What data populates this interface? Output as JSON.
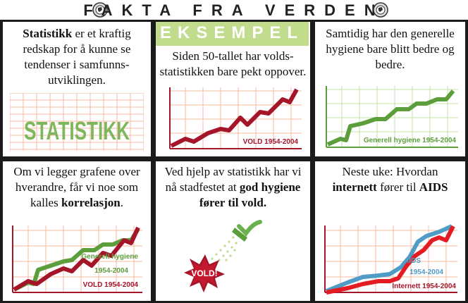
{
  "header": {
    "title": "FAKTA FRA VERDEN"
  },
  "panels": {
    "p1": {
      "bold": "Statistikk",
      "rest": " er et kraftig redskap for å kunne se tendenser i samfunns-utviklingen.",
      "graphic_word": "STATISTIKK"
    },
    "p2": {
      "tag": "EKSEMPEL",
      "text": "Siden 50-tallet har volds-statistikken bare pekt oppover.",
      "chart_label": "VOLD 1954-2004"
    },
    "p3": {
      "text": "Samtidig har den generelle hygiene bare blitt bedre og bedre.",
      "chart_label": "Generell hygiene 1954-2004"
    },
    "p4": {
      "text": "Om vi legger grafene over hverandre, får vi noe som kalles ",
      "bold": "korrelasjon",
      "end": ".",
      "label_green_1": "Generell hygiene",
      "label_green_2": "1954-2004",
      "label_red": "VOLD 1954-2004"
    },
    "p5": {
      "text": "Ved hjelp av statistikk har vi nå stadfestet at ",
      "bold": "god hygiene fører til vold.",
      "burst_label": "VOLD!"
    },
    "p6": {
      "text1": "Neste uke: Hvordan ",
      "bold1": "internett",
      "text2": " fører til ",
      "bold2": "AIDS",
      "label_blue_1": "AIDS",
      "label_blue_2": "1954-2004",
      "label_red": "Internett 1954-2004"
    }
  },
  "colors": {
    "red": "#a5152a",
    "green": "#5d9e3c",
    "blue": "#4f9cc6",
    "bright_red": "#e41b23",
    "grid_orange": "#f4b8a2",
    "grid_red": "#d9826f",
    "eksempel_bg": "#c2dc8e"
  }
}
